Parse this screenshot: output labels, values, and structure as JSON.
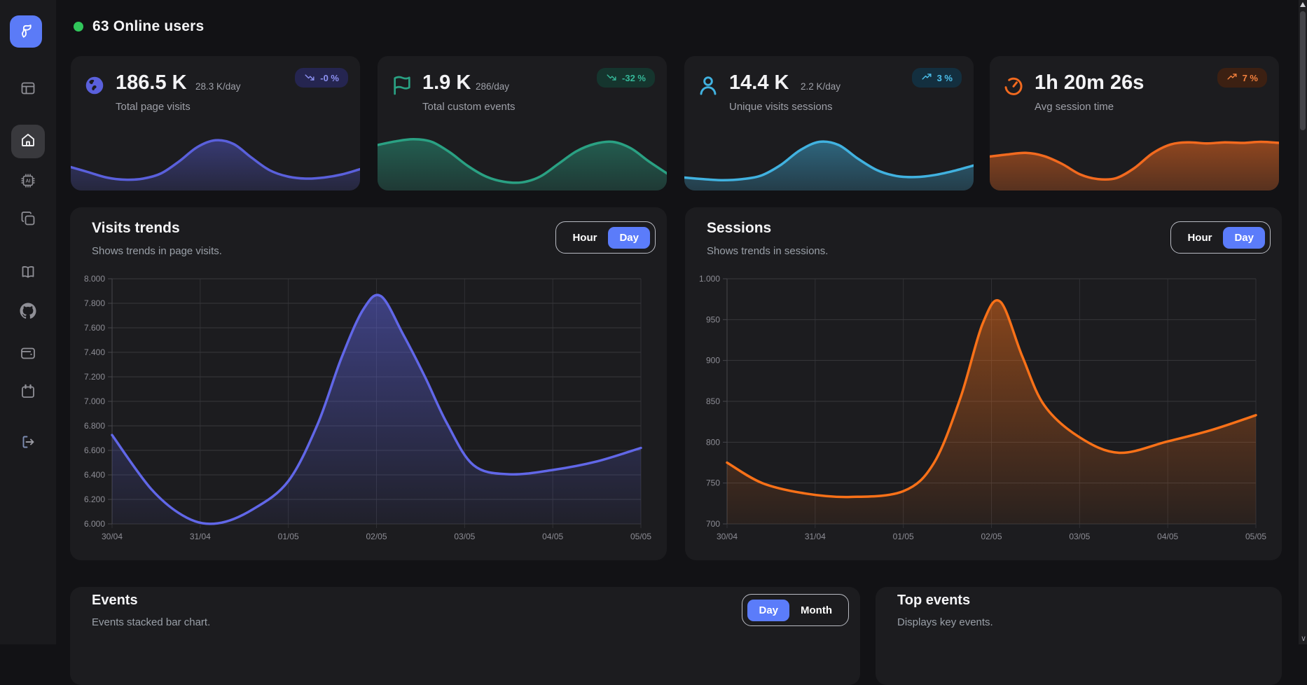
{
  "header": {
    "online_users": "63 Online users"
  },
  "sidebar": {
    "active_item": "home",
    "items": [
      "logo",
      "layout",
      "home",
      "ai-chip",
      "copy",
      "book",
      "github",
      "wallet",
      "calendar",
      "logout"
    ]
  },
  "colors": {
    "accent_blue": "#5b7cfa",
    "online_green": "#31c65b",
    "visits_line": "#6167e8",
    "sessions_line": "#f97118"
  },
  "kpi_cards": [
    {
      "value": "186.5 K",
      "per_day": "28.3 K/day",
      "label": "Total page visits",
      "badge": "-0 %",
      "trend": "down",
      "icon": "globe-icon",
      "accent": "#5a60dc",
      "badge_bg": "#252550",
      "badge_fg": "#8d91f2",
      "fill_top": "rgba(90,96,220,0.50)",
      "fill_bottom": "rgba(90,96,220,0.16)",
      "spark": [
        0.34,
        0.24,
        0.14,
        0.1,
        0.12,
        0.22,
        0.45,
        0.72,
        0.85,
        0.78,
        0.52,
        0.28,
        0.16,
        0.12,
        0.14,
        0.2,
        0.3
      ]
    },
    {
      "value": "1.9 K",
      "per_day": "286/day",
      "label": "Total custom events",
      "badge": "-32 %",
      "trend": "down",
      "icon": "flag-icon",
      "accent": "#2aa183",
      "badge_bg": "#15352e",
      "badge_fg": "#35b899",
      "fill_top": "rgba(42,161,131,0.55)",
      "fill_bottom": "rgba(42,161,131,0.22)",
      "spark": [
        0.76,
        0.83,
        0.87,
        0.82,
        0.62,
        0.36,
        0.16,
        0.06,
        0.05,
        0.16,
        0.4,
        0.64,
        0.78,
        0.82,
        0.7,
        0.45,
        0.22
      ]
    },
    {
      "value": "14.4 K",
      "per_day": "2.2 K/day",
      "label": "Unique visits sessions",
      "badge": "3 %",
      "trend": "up",
      "icon": "user-icon",
      "accent": "#41b2e0",
      "badge_bg": "#132f3f",
      "badge_fg": "#4cc0ec",
      "fill_top": "rgba(65,178,224,0.55)",
      "fill_bottom": "rgba(65,178,224,0.22)",
      "spark": [
        0.14,
        0.11,
        0.09,
        0.11,
        0.18,
        0.38,
        0.66,
        0.82,
        0.76,
        0.5,
        0.28,
        0.17,
        0.15,
        0.19,
        0.27,
        0.37
      ]
    },
    {
      "value": "1h 20m 26s",
      "per_day": "",
      "label": "Avg session time",
      "badge": "7 %",
      "trend": "up",
      "icon": "timer-icon",
      "accent": "#f26a1f",
      "badge_bg": "#3c2012",
      "badge_fg": "#f5813d",
      "fill_top": "rgba(242,106,31,0.60)",
      "fill_bottom": "rgba(242,106,31,0.28)",
      "spark": [
        0.54,
        0.58,
        0.61,
        0.55,
        0.4,
        0.2,
        0.11,
        0.13,
        0.32,
        0.6,
        0.77,
        0.81,
        0.79,
        0.81,
        0.8,
        0.82,
        0.8
      ]
    }
  ],
  "visits_panel": {
    "title": "Visits trends",
    "subtitle": "Shows trends in page visits.",
    "toggle": [
      "Hour",
      "Day"
    ],
    "toggle_active": "Day"
  },
  "sessions_panel": {
    "title": "Sessions",
    "subtitle": "Shows trends in sessions.",
    "toggle": [
      "Hour",
      "Day"
    ],
    "toggle_active": "Day"
  },
  "events_panel": {
    "title": "Events",
    "subtitle": "Events stacked bar chart.",
    "toggle": [
      "Day",
      "Month"
    ],
    "toggle_active": "Day"
  },
  "top_events_panel": {
    "title": "Top events",
    "subtitle": "Displays key events."
  },
  "chart_data": [
    {
      "type": "area",
      "title": "Visits trends",
      "x_tick_labels": [
        "30/04",
        "31/04",
        "01/05",
        "02/05",
        "03/05",
        "04/05",
        "05/05"
      ],
      "y_tick_labels": [
        "8.000",
        "7.800",
        "7.600",
        "7.400",
        "7.200",
        "7.000",
        "6.800",
        "6.600",
        "6.400",
        "6.200",
        "6.000"
      ],
      "xlim": [
        0,
        6
      ],
      "ylim": [
        6000,
        8000
      ],
      "grid": true,
      "legend": "none",
      "line_color": "#6167e8",
      "series": [
        {
          "name": "page visits",
          "x": [
            0,
            0.45,
            0.85,
            1.2,
            1.6,
            2.0,
            2.33,
            2.6,
            2.85,
            3.05,
            3.3,
            3.55,
            3.8,
            4.1,
            4.5,
            5.0,
            5.5,
            6.0
          ],
          "values": [
            6725,
            6280,
            6050,
            6005,
            6120,
            6350,
            6810,
            7350,
            7750,
            7858,
            7550,
            7200,
            6820,
            6480,
            6405,
            6440,
            6510,
            6620
          ]
        }
      ]
    },
    {
      "type": "area",
      "title": "Sessions",
      "x_tick_labels": [
        "30/04",
        "31/04",
        "01/05",
        "02/05",
        "03/05",
        "04/05",
        "05/05"
      ],
      "y_tick_labels": [
        "1.000",
        "950",
        "900",
        "850",
        "800",
        "750",
        "700"
      ],
      "xlim": [
        0,
        6
      ],
      "ylim": [
        700,
        1000
      ],
      "grid": true,
      "legend": "none",
      "line_color": "#f97118",
      "series": [
        {
          "name": "sessions",
          "x": [
            0,
            0.4,
            0.9,
            1.4,
            2.0,
            2.35,
            2.65,
            2.9,
            3.1,
            3.35,
            3.6,
            4.0,
            4.45,
            5.0,
            5.5,
            6.0
          ],
          "values": [
            775,
            750,
            737,
            733,
            740,
            775,
            855,
            945,
            972,
            905,
            845,
            806,
            787,
            801,
            815,
            833
          ]
        }
      ]
    }
  ]
}
